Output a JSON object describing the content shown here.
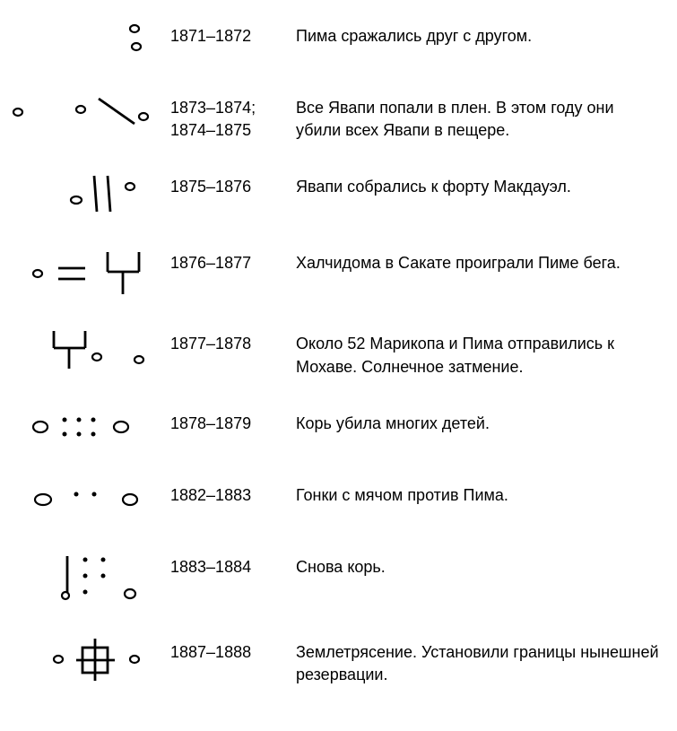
{
  "rows": [
    {
      "year": "1871–1872",
      "desc": "Пима сражались друг с другом.",
      "symbol": "two-dots-vertical"
    },
    {
      "year": "1873–1874;\n1874–1875",
      "desc": "Все Явапи попали в плен. В этом году они убили всех Явапи в пещере.",
      "symbol": "dots-diagonal"
    },
    {
      "year": "1875–1876",
      "desc": "Явапи собрались к форту Макдауэл.",
      "symbol": "dots-parallel"
    },
    {
      "year": "1876–1877",
      "desc": "Халчидома в Сакате проиграли Пиме бега.",
      "symbol": "fork-equals"
    },
    {
      "year": "1877–1878",
      "desc": "Около 52 Марикопа и Пима отправились к Мохаве. Солнечное затмение.",
      "symbol": "fork-dots"
    },
    {
      "year": "1878–1879",
      "desc": "Корь убила многих детей.",
      "symbol": "six-dots-ovals"
    },
    {
      "year": "1882–1883",
      "desc": "Гонки с мячом против Пима.",
      "symbol": "two-dots-ovals"
    },
    {
      "year": "1883–1884",
      "desc": "Снова корь.",
      "symbol": "stick-dots"
    },
    {
      "year": "1887–1888",
      "desc": "Землетрясение. Установили границы нынешней резервации.",
      "symbol": "square-cross"
    }
  ],
  "style": {
    "background": "#ffffff",
    "text_color": "#000000",
    "font_size": 18,
    "stroke_color": "#000000",
    "stroke_width": 2.2
  }
}
